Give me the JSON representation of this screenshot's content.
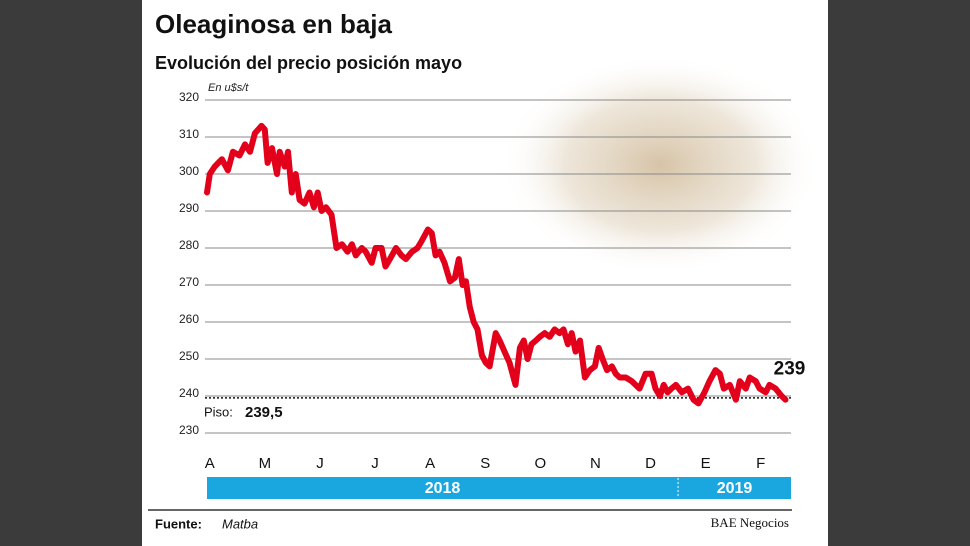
{
  "chart_data": {
    "type": "line",
    "title": "Oleaginosa en baja",
    "subtitle": "Evolución del precio posición mayo",
    "unit_label": "En u$s/t",
    "color": "#e3001b",
    "grid": true,
    "ylim": [
      230,
      320
    ],
    "yticks": [
      230,
      240,
      250,
      260,
      270,
      280,
      290,
      300,
      310,
      320
    ],
    "xlim": [
      -0.05,
      10.55
    ],
    "xticks": [
      {
        "value": 0,
        "label": "A"
      },
      {
        "value": 1,
        "label": "M"
      },
      {
        "value": 2,
        "label": "J"
      },
      {
        "value": 3,
        "label": "J"
      },
      {
        "value": 4,
        "label": "A"
      },
      {
        "value": 5,
        "label": "S"
      },
      {
        "value": 6,
        "label": "O"
      },
      {
        "value": 7,
        "label": "N"
      },
      {
        "value": 8,
        "label": "D"
      },
      {
        "value": 9,
        "label": "E"
      },
      {
        "value": 10,
        "label": "F"
      }
    ],
    "x": [
      -0.05,
      0,
      0.09,
      0.22,
      0.33,
      0.42,
      0.54,
      0.64,
      0.73,
      0.82,
      0.94,
      1.0,
      1.05,
      1.13,
      1.22,
      1.27,
      1.36,
      1.42,
      1.49,
      1.56,
      1.63,
      1.72,
      1.81,
      1.89,
      1.96,
      2.03,
      2.11,
      2.21,
      2.3,
      2.4,
      2.5,
      2.58,
      2.65,
      2.76,
      2.83,
      2.94,
      3.01,
      3.12,
      3.19,
      3.27,
      3.38,
      3.48,
      3.56,
      3.67,
      3.77,
      3.85,
      3.96,
      4.03,
      4.1,
      4.17,
      4.26,
      4.36,
      4.45,
      4.52,
      4.59,
      4.65,
      4.72,
      4.79,
      4.86,
      4.94,
      5.01,
      5.08,
      5.19,
      5.26,
      5.35,
      5.44,
      5.55,
      5.63,
      5.7,
      5.77,
      5.84,
      5.92,
      5.99,
      6.08,
      6.17,
      6.26,
      6.35,
      6.42,
      6.5,
      6.57,
      6.64,
      6.72,
      6.81,
      6.9,
      6.99,
      7.06,
      7.13,
      7.21,
      7.3,
      7.37,
      7.44,
      7.55,
      7.66,
      7.73,
      7.8,
      7.91,
      8.02,
      8.09,
      8.17,
      8.24,
      8.31,
      8.38,
      8.46,
      8.57,
      8.68,
      8.78,
      8.87,
      8.98,
      9.07,
      9.18,
      9.26,
      9.33,
      9.44,
      9.55,
      9.62,
      9.73,
      9.8,
      9.91,
      9.98,
      10.09,
      10.16,
      10.27,
      10.38,
      10.45
    ],
    "values": [
      295,
      300,
      302,
      304,
      301,
      306,
      305,
      308,
      306,
      311,
      313,
      312,
      303,
      307,
      300,
      306,
      302,
      306,
      295,
      300,
      293,
      292,
      295,
      291,
      295,
      290,
      291,
      289,
      280,
      281,
      279,
      281,
      278,
      280,
      279,
      276,
      280,
      280,
      275,
      277,
      280,
      278,
      277,
      279,
      280,
      282,
      285,
      284,
      278,
      279,
      276,
      271,
      272,
      277,
      270,
      271,
      264,
      260,
      258,
      251,
      249,
      248,
      257,
      255,
      252,
      249,
      243,
      253,
      255,
      250,
      254,
      255,
      256,
      257,
      256,
      258,
      257,
      258,
      254,
      257,
      252,
      255,
      245,
      247,
      248,
      253,
      250,
      247,
      248,
      246,
      245,
      245,
      244,
      243,
      242,
      246,
      246,
      242,
      240,
      243,
      241,
      242,
      243,
      241,
      242,
      239,
      238,
      241,
      244,
      247,
      246,
      242,
      243,
      239,
      244,
      242,
      245,
      244,
      242,
      241,
      243,
      242,
      240,
      239
    ],
    "last_label": "239",
    "floor": {
      "label": "Piso:",
      "value": 239.5,
      "value_label": "239,5"
    },
    "years": [
      {
        "label": "2018",
        "start": -0.05,
        "end": 8.5
      },
      {
        "label": "2019",
        "start": 8.5,
        "end": 10.55
      }
    ],
    "source_label": "Fuente:",
    "source": "Matba",
    "credit": "BAE Negocios"
  }
}
